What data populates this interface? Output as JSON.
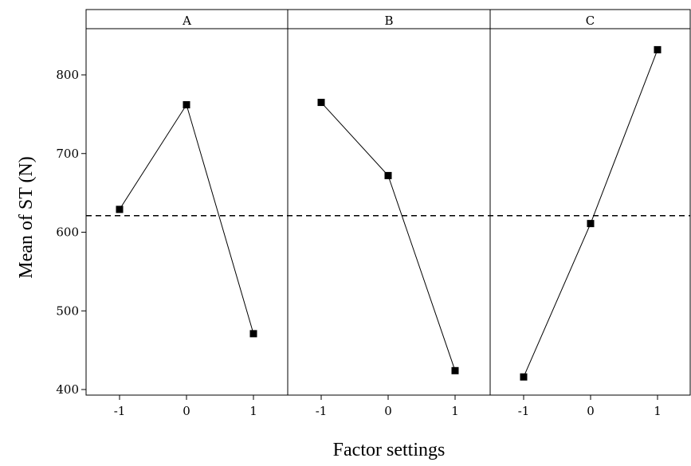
{
  "chart_data": {
    "type": "line",
    "xlabel": "Factor settings",
    "ylabel": "Mean of ST (N)",
    "ylim": [
      400,
      860
    ],
    "yticks": [
      400,
      500,
      600,
      700,
      800
    ],
    "x_categories": [
      "-1",
      "0",
      "1"
    ],
    "reference_line": {
      "value": 621,
      "style": "dashed"
    },
    "panels": [
      {
        "title": "A",
        "values": [
          629,
          762,
          471
        ]
      },
      {
        "title": "B",
        "values": [
          765,
          672,
          424
        ]
      },
      {
        "title": "C",
        "values": [
          416,
          611,
          832
        ]
      }
    ],
    "grid": false,
    "colors": {
      "line": "#000000",
      "marker": "#000000",
      "reference": "#000000"
    }
  }
}
